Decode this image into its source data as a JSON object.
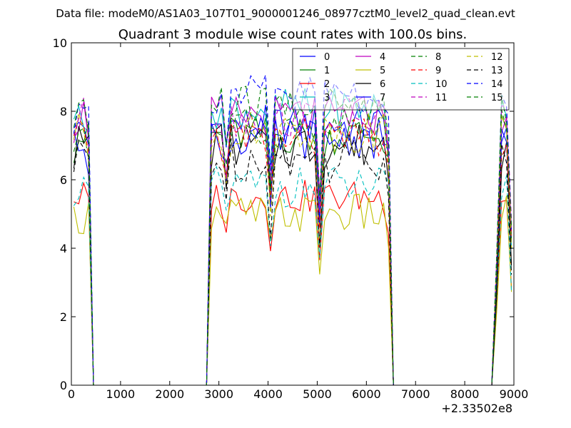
{
  "figure": {
    "suptitle": "Data file: modeM0/AS1A03_107T01_9000001246_08977cztM0_level2_quad_clean.evt"
  },
  "chart_data": {
    "type": "line",
    "title": "Quadrant 3 module wise count rates with 100.0s bins.",
    "xlabel": "",
    "ylabel": "",
    "xlim": [
      0,
      9000
    ],
    "ylim": [
      0,
      10
    ],
    "x_ticks": [
      0,
      1000,
      2000,
      3000,
      4000,
      5000,
      6000,
      7000,
      8000,
      9000
    ],
    "x_tick_labels": [
      "0",
      "1000",
      "2000",
      "3000",
      "4000",
      "5000",
      "6000",
      "7000",
      "8000",
      "9000"
    ],
    "y_ticks": [
      0,
      2,
      4,
      6,
      8,
      10
    ],
    "y_tick_labels": [
      "0",
      "2",
      "4",
      "6",
      "8",
      "10"
    ],
    "x_offset_label": "+2.33502e8",
    "legend_position": "top-right",
    "legend_columns": 4,
    "x": [
      50,
      150,
      250,
      350,
      450,
      2750,
      2850,
      2950,
      3050,
      3150,
      3250,
      3350,
      3450,
      3550,
      3650,
      3750,
      3850,
      3950,
      4050,
      4150,
      4250,
      4350,
      4450,
      4550,
      4650,
      4750,
      4850,
      4950,
      5050,
      5150,
      5250,
      5350,
      5450,
      5550,
      5650,
      5750,
      5850,
      5950,
      6050,
      6150,
      6250,
      6350,
      6450,
      6550,
      8550,
      8650,
      8750,
      8850,
      8950
    ],
    "series": [
      {
        "name": "0",
        "color": "#0000ff",
        "dash": "solid",
        "level": 7.6,
        "variation": 0.3
      },
      {
        "name": "1",
        "color": "#008000",
        "dash": "solid",
        "level": 7.3,
        "variation": 0.3
      },
      {
        "name": "2",
        "color": "#ff0000",
        "dash": "solid",
        "level": 5.5,
        "variation": 0.25
      },
      {
        "name": "3",
        "color": "#00bfbf",
        "dash": "solid",
        "level": 8.1,
        "variation": 0.3
      },
      {
        "name": "4",
        "color": "#bf00bf",
        "dash": "solid",
        "level": 7.9,
        "variation": 0.3
      },
      {
        "name": "5",
        "color": "#bfbf00",
        "dash": "solid",
        "level": 5.0,
        "variation": 0.3
      },
      {
        "name": "6",
        "color": "#000000",
        "dash": "solid",
        "level": 7.0,
        "variation": 0.35
      },
      {
        "name": "7",
        "color": "#0000ff",
        "dash": "solid",
        "level": 7.2,
        "variation": 0.3
      },
      {
        "name": "8",
        "color": "#008000",
        "dash": "dashed",
        "level": 7.5,
        "variation": 0.3
      },
      {
        "name": "9",
        "color": "#ff0000",
        "dash": "dashed",
        "level": 7.2,
        "variation": 0.3
      },
      {
        "name": "10",
        "color": "#00bfbf",
        "dash": "dashed",
        "level": 5.8,
        "variation": 0.3
      },
      {
        "name": "11",
        "color": "#bf00bf",
        "dash": "dashed",
        "level": 7.8,
        "variation": 0.3
      },
      {
        "name": "12",
        "color": "#bfbf00",
        "dash": "dashed",
        "level": 7.4,
        "variation": 0.3
      },
      {
        "name": "13",
        "color": "#000000",
        "dash": "dashed",
        "level": 6.6,
        "variation": 0.35
      },
      {
        "name": "14",
        "color": "#0000ff",
        "dash": "dashed",
        "level": 8.5,
        "variation": 0.3
      },
      {
        "name": "15",
        "color": "#008000",
        "dash": "dashed",
        "level": 8.2,
        "variation": 0.3
      }
    ]
  }
}
